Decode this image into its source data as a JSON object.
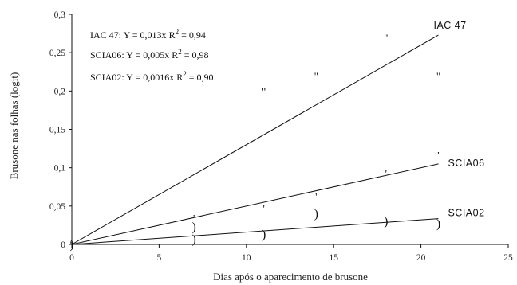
{
  "chart_data": {
    "type": "scatter",
    "xlabel": "Dias após o aparecimento de brusone",
    "ylabel": "Brusone nas folhas (logit)",
    "xlim": [
      0,
      25
    ],
    "ylim": [
      0,
      0.3
    ],
    "x_ticks": [
      0,
      5,
      10,
      15,
      20,
      25
    ],
    "y_ticks": [
      0,
      0.05,
      0.1,
      0.15,
      0.2,
      0.25,
      0.3
    ],
    "x_tick_labels": [
      "0",
      "5",
      "10",
      "15",
      "20",
      "25"
    ],
    "y_tick_labels": [
      "0",
      "0,05",
      "0,1",
      "0,15",
      "0,2",
      "0,25",
      "0,3"
    ],
    "grid": false,
    "legend": "top-left",
    "equations": [
      {
        "label": "IAC 47:",
        "formula": "Y = 0,013x",
        "r2_label": "R",
        "r2_sup": "2",
        "r2_value": "=  0,94"
      },
      {
        "label": "SCIA06:",
        "formula": "Y = 0,005x",
        "r2_label": "R",
        "r2_sup": "2",
        "r2_value": "=  0,98"
      },
      {
        "label": "SCIA02:",
        "formula": "Y = 0,0016x",
        "r2_label": "R",
        "r2_sup": "2",
        "r2_value": "=  0,90"
      }
    ],
    "series": [
      {
        "name": "IAC 47",
        "slope": 0.013,
        "line_x": [
          0,
          21
        ],
        "marker": "\"",
        "points": [
          {
            "x": 0,
            "y": 0
          },
          {
            "x": 11,
            "y": 0.2
          },
          {
            "x": 14,
            "y": 0.22
          },
          {
            "x": 18,
            "y": 0.27
          },
          {
            "x": 21,
            "y": 0.22
          }
        ]
      },
      {
        "name": "SCIA06",
        "slope": 0.005,
        "line_x": [
          0,
          21
        ],
        "marker": "'",
        "points": [
          {
            "x": 0,
            "y": 0
          },
          {
            "x": 7,
            "y": 0.035
          },
          {
            "x": 11,
            "y": 0.047
          },
          {
            "x": 14,
            "y": 0.063
          },
          {
            "x": 18,
            "y": 0.093
          },
          {
            "x": 21,
            "y": 0.117
          }
        ]
      },
      {
        "name": "SCIA02",
        "slope": 0.0016,
        "line_x": [
          0,
          21
        ],
        "marker": ")",
        "points": [
          {
            "x": 0,
            "y": 0
          },
          {
            "x": 7,
            "y": 0.023
          },
          {
            "x": 7,
            "y": 0.007
          },
          {
            "x": 11,
            "y": 0.013
          },
          {
            "x": 14,
            "y": 0.04
          },
          {
            "x": 18,
            "y": 0.03
          },
          {
            "x": 21,
            "y": 0.027
          }
        ]
      }
    ]
  }
}
